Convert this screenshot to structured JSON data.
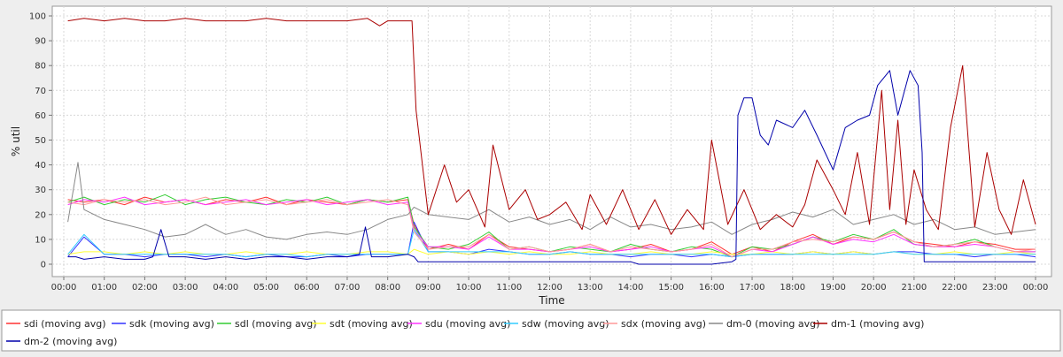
{
  "chart_data": {
    "type": "line",
    "title": "",
    "xlabel": "Time",
    "ylabel": "% util",
    "ylim": [
      0,
      100
    ],
    "yticks": [
      0,
      10,
      20,
      30,
      40,
      50,
      60,
      70,
      80,
      90,
      100
    ],
    "xlim": [
      0,
      24
    ],
    "xticks": [
      "00:00",
      "01:00",
      "02:00",
      "03:00",
      "04:00",
      "05:00",
      "06:00",
      "07:00",
      "08:00",
      "09:00",
      "10:00",
      "11:00",
      "12:00",
      "13:00",
      "14:00",
      "15:00",
      "16:00",
      "17:00",
      "18:00",
      "19:00",
      "20:00",
      "21:00",
      "22:00",
      "23:00",
      "00:00"
    ],
    "grid": true,
    "legend_position": "bottom",
    "series": [
      {
        "name": "sdi (moving avg)",
        "color": "#ff3333",
        "x": [
          0.1,
          0.5,
          1,
          1.5,
          2,
          2.5,
          3,
          3.5,
          4,
          4.5,
          5,
          5.5,
          6,
          6.5,
          7,
          7.5,
          8,
          8.5,
          8.65,
          9,
          9.5,
          10,
          10.5,
          11,
          11.5,
          12,
          12.5,
          13,
          13.5,
          14,
          14.5,
          15,
          15.5,
          16,
          16.5,
          17,
          17.5,
          18,
          18.5,
          19,
          19.5,
          20,
          20.5,
          21,
          21.5,
          22,
          22.5,
          23,
          23.5,
          24
        ],
        "y": [
          26,
          25,
          26,
          24,
          27,
          25,
          26,
          24,
          26,
          25,
          27,
          24,
          26,
          25,
          24,
          26,
          25,
          26,
          16,
          6,
          8,
          6,
          12,
          7,
          6,
          5,
          6,
          8,
          5,
          6,
          8,
          5,
          6,
          9,
          4,
          7,
          5,
          9,
          12,
          8,
          11,
          10,
          13,
          9,
          8,
          7,
          9,
          8,
          6,
          6
        ]
      },
      {
        "name": "sdk (moving avg)",
        "color": "#3333ff",
        "x": [
          0.1,
          0.5,
          1,
          1.5,
          2,
          2.5,
          3,
          3.5,
          4,
          4.5,
          5,
          5.5,
          6,
          6.5,
          7,
          7.5,
          8,
          8.5,
          8.65,
          9,
          9.5,
          10,
          10.5,
          11,
          11.5,
          12,
          12.5,
          13,
          13.5,
          14,
          14.5,
          15,
          15.5,
          16,
          16.5,
          17,
          17.5,
          18,
          18.5,
          19,
          19.5,
          20,
          20.5,
          21,
          21.5,
          22,
          22.5,
          23,
          23.5,
          24
        ],
        "y": [
          3,
          11,
          4,
          4,
          3,
          4,
          4,
          3,
          4,
          3,
          4,
          3,
          3,
          4,
          3,
          4,
          4,
          4,
          17,
          5,
          5,
          4,
          6,
          5,
          4,
          4,
          5,
          4,
          4,
          3,
          4,
          4,
          3,
          4,
          3,
          4,
          4,
          4,
          5,
          4,
          5,
          4,
          5,
          5,
          4,
          4,
          3,
          4,
          4,
          3
        ]
      },
      {
        "name": "sdl (moving avg)",
        "color": "#33cc33",
        "x": [
          0.1,
          0.5,
          1,
          1.5,
          2,
          2.5,
          3,
          3.5,
          4,
          4.5,
          5,
          5.5,
          6,
          6.5,
          7,
          7.5,
          8,
          8.5,
          8.65,
          9,
          9.5,
          10,
          10.5,
          11,
          11.5,
          12,
          12.5,
          13,
          13.5,
          14,
          14.5,
          15,
          15.5,
          16,
          16.5,
          17,
          17.5,
          18,
          18.5,
          19,
          19.5,
          20,
          20.5,
          21,
          21.5,
          22,
          22.5,
          23,
          23.5,
          24
        ],
        "y": [
          25,
          27,
          24,
          26,
          25,
          28,
          24,
          26,
          27,
          25,
          24,
          26,
          25,
          27,
          24,
          26,
          25,
          27,
          15,
          7,
          6,
          8,
          13,
          6,
          7,
          5,
          7,
          6,
          5,
          8,
          6,
          5,
          7,
          6,
          3,
          7,
          6,
          8,
          11,
          9,
          12,
          10,
          14,
          8,
          7,
          8,
          10,
          7,
          5,
          5
        ]
      },
      {
        "name": "sdt (moving avg)",
        "color": "#ffff33",
        "x": [
          0.1,
          0.5,
          1,
          1.5,
          2,
          2.5,
          3,
          3.5,
          4,
          4.5,
          5,
          5.5,
          6,
          6.5,
          7,
          7.5,
          8,
          8.5,
          8.65,
          9,
          9.5,
          10,
          10.5,
          11,
          11.5,
          12,
          12.5,
          13,
          13.5,
          14,
          14.5,
          15,
          15.5,
          16,
          16.5,
          17,
          17.5,
          18,
          18.5,
          19,
          19.5,
          20,
          20.5,
          21,
          21.5,
          22,
          22.5,
          23,
          23.5,
          24
        ],
        "y": [
          4,
          5,
          5,
          4,
          5,
          4,
          5,
          4,
          4,
          5,
          4,
          4,
          5,
          4,
          4,
          5,
          5,
          4,
          6,
          4,
          5,
          4,
          5,
          4,
          5,
          4,
          4,
          5,
          4,
          4,
          5,
          4,
          4,
          5,
          4,
          4,
          5,
          4,
          5,
          4,
          5,
          4,
          5,
          4,
          4,
          5,
          4,
          4,
          5,
          4
        ]
      },
      {
        "name": "sdu (moving avg)",
        "color": "#ff33ff",
        "x": [
          0.1,
          0.5,
          1,
          1.5,
          2,
          2.5,
          3,
          3.5,
          4,
          4.5,
          5,
          5.5,
          6,
          6.5,
          7,
          7.5,
          8,
          8.5,
          8.65,
          9,
          9.5,
          10,
          10.5,
          11,
          11.5,
          12,
          12.5,
          13,
          13.5,
          14,
          14.5,
          15,
          15.5,
          16,
          16.5,
          17,
          17.5,
          18,
          18.5,
          19,
          19.5,
          20,
          20.5,
          21,
          21.5,
          22,
          22.5,
          23,
          23.5,
          24
        ],
        "y": [
          24,
          26,
          25,
          27,
          24,
          25,
          26,
          24,
          25,
          26,
          24,
          25,
          26,
          24,
          25,
          26,
          24,
          25,
          14,
          7,
          7,
          6,
          11,
          6,
          6,
          5,
          6,
          7,
          5,
          6,
          7,
          5,
          6,
          7,
          3,
          6,
          5,
          8,
          11,
          8,
          10,
          9,
          12,
          8,
          7,
          7,
          8,
          7,
          5,
          5
        ]
      },
      {
        "name": "sdw (moving avg)",
        "color": "#33ccff",
        "x": [
          0.1,
          0.5,
          1,
          1.5,
          2,
          2.5,
          3,
          3.5,
          4,
          4.5,
          5,
          5.5,
          6,
          6.5,
          7,
          7.5,
          8,
          8.5,
          8.65,
          9,
          9.5,
          10,
          10.5,
          11,
          11.5,
          12,
          12.5,
          13,
          13.5,
          14,
          14.5,
          15,
          15.5,
          16,
          16.5,
          17,
          17.5,
          18,
          18.5,
          19,
          19.5,
          20,
          20.5,
          21,
          21.5,
          22,
          22.5,
          23,
          23.5,
          24
        ],
        "y": [
          4,
          12,
          4,
          4,
          4,
          4,
          4,
          4,
          4,
          3,
          4,
          4,
          3,
          4,
          4,
          4,
          4,
          4,
          14,
          5,
          5,
          5,
          5,
          5,
          4,
          4,
          5,
          4,
          4,
          4,
          4,
          4,
          4,
          4,
          3,
          4,
          4,
          4,
          4,
          4,
          4,
          4,
          5,
          4,
          4,
          4,
          4,
          4,
          4,
          4
        ]
      },
      {
        "name": "sdx (moving avg)",
        "color": "#ff9999",
        "x": [
          0.1,
          0.5,
          1,
          1.5,
          2,
          2.5,
          3,
          3.5,
          4,
          4.5,
          5,
          5.5,
          6,
          6.5,
          7,
          7.5,
          8,
          8.5,
          8.65,
          9,
          9.5,
          10,
          10.5,
          11,
          11.5,
          12,
          12.5,
          13,
          13.5,
          14,
          14.5,
          15,
          15.5,
          16,
          16.5,
          17,
          17.5,
          18,
          18.5,
          19,
          19.5,
          20,
          20.5,
          21,
          21.5,
          22,
          22.5,
          23,
          23.5,
          24
        ],
        "y": [
          25,
          24,
          26,
          25,
          26,
          24,
          25,
          27,
          24,
          25,
          26,
          24,
          25,
          26,
          24,
          25,
          26,
          24,
          13,
          6,
          7,
          7,
          12,
          6,
          7,
          5,
          6,
          8,
          5,
          7,
          6,
          5,
          6,
          8,
          3,
          6,
          6,
          9,
          10,
          9,
          11,
          10,
          13,
          9,
          7,
          8,
          9,
          7,
          5,
          6
        ]
      },
      {
        "name": "dm-0 (moving avg)",
        "color": "#888888",
        "x": [
          0.1,
          0.35,
          0.5,
          1,
          1.5,
          2,
          2.5,
          3,
          3.5,
          4,
          4.5,
          5,
          5.5,
          6,
          6.5,
          7,
          7.5,
          8,
          8.5,
          8.65,
          9,
          9.5,
          10,
          10.5,
          11,
          11.5,
          12,
          12.5,
          13,
          13.5,
          14,
          14.5,
          15,
          15.5,
          16,
          16.5,
          17,
          17.5,
          18,
          18.5,
          19,
          19.5,
          20,
          20.5,
          21,
          21.5,
          22,
          22.5,
          23,
          23.5,
          24
        ],
        "y": [
          17,
          41,
          22,
          18,
          16,
          14,
          11,
          12,
          16,
          12,
          14,
          11,
          10,
          12,
          13,
          12,
          14,
          18,
          20,
          23,
          20,
          19,
          18,
          22,
          17,
          19,
          16,
          18,
          14,
          19,
          15,
          16,
          14,
          15,
          17,
          12,
          16,
          18,
          21,
          19,
          22,
          16,
          18,
          20,
          16,
          18,
          14,
          15,
          12,
          13,
          14
        ]
      },
      {
        "name": "dm-1 (moving avg)",
        "color": "#aa0000",
        "x": [
          0.1,
          0.5,
          1,
          1.5,
          2,
          2.5,
          3,
          3.5,
          4,
          4.5,
          5,
          5.5,
          6,
          6.5,
          7,
          7.5,
          7.8,
          8,
          8.5,
          8.6,
          8.7,
          9,
          9.4,
          9.7,
          10,
          10.4,
          10.6,
          11,
          11.4,
          11.7,
          12,
          12.4,
          12.8,
          13,
          13.4,
          13.8,
          14.2,
          14.6,
          15,
          15.4,
          15.8,
          16,
          16.4,
          16.8,
          17.2,
          17.6,
          18,
          18.3,
          18.6,
          19,
          19.3,
          19.6,
          19.9,
          20.2,
          20.4,
          20.6,
          20.8,
          21,
          21.3,
          21.6,
          21.9,
          22.2,
          22.5,
          22.8,
          23.1,
          23.4,
          23.7,
          24
        ],
        "y": [
          98,
          99,
          98,
          99,
          98,
          98,
          99,
          98,
          98,
          98,
          99,
          98,
          98,
          98,
          98,
          99,
          96,
          98,
          98,
          98,
          62,
          20,
          40,
          25,
          30,
          15,
          48,
          22,
          30,
          18,
          20,
          25,
          14,
          28,
          16,
          30,
          14,
          26,
          12,
          22,
          14,
          50,
          16,
          30,
          14,
          20,
          15,
          24,
          42,
          30,
          20,
          45,
          16,
          70,
          22,
          58,
          16,
          38,
          22,
          14,
          55,
          80,
          15,
          45,
          22,
          12,
          34,
          16
        ]
      },
      {
        "name": "dm-2 (moving avg)",
        "color": "#0000aa",
        "x": [
          0.1,
          0.3,
          0.5,
          1,
          1.5,
          2,
          2.2,
          2.4,
          2.6,
          3,
          3.5,
          4,
          4.5,
          5,
          5.5,
          6,
          6.5,
          7,
          7.3,
          7.45,
          7.6,
          8,
          8.5,
          8.65,
          8.75,
          9,
          9.5,
          10,
          11,
          12,
          13,
          14,
          14.2,
          15,
          16,
          16.5,
          16.6,
          16.65,
          16.8,
          17,
          17.2,
          17.4,
          17.6,
          18,
          18.3,
          18.6,
          19,
          19.3,
          19.6,
          19.9,
          20.1,
          20.4,
          20.6,
          20.9,
          21.1,
          21.2,
          21.25,
          22,
          23,
          24
        ],
        "y": [
          3,
          3,
          2,
          3,
          2,
          2,
          3,
          14,
          3,
          3,
          2,
          3,
          2,
          3,
          3,
          2,
          3,
          3,
          4,
          15,
          3,
          3,
          4,
          3,
          1,
          1,
          1,
          1,
          1,
          1,
          1,
          1,
          0,
          0,
          0,
          1,
          2,
          60,
          67,
          67,
          52,
          48,
          58,
          55,
          62,
          52,
          38,
          55,
          58,
          60,
          72,
          78,
          60,
          78,
          72,
          45,
          1,
          1,
          1,
          1
        ]
      }
    ]
  }
}
